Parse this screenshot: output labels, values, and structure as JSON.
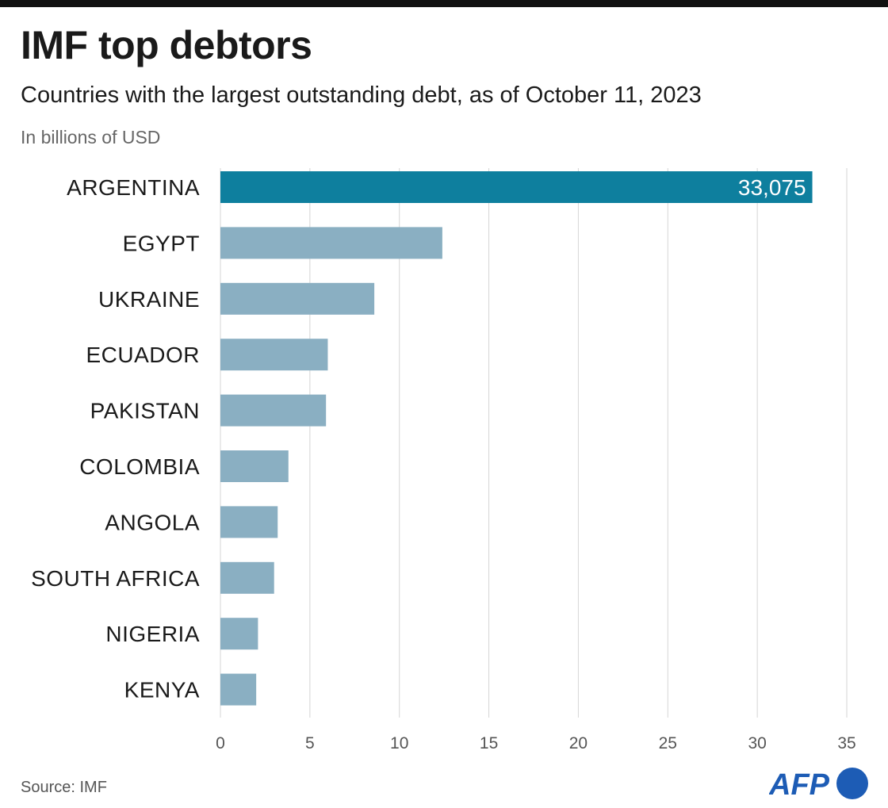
{
  "title": "IMF top debtors",
  "subtitle": "Countries with the largest outstanding debt, as of October 11, 2023",
  "unit_note": "In billions of USD",
  "source": "Source: IMF",
  "logo_text": "AFP",
  "colors": {
    "highlight": "#0e7f9e",
    "bar": "#8aafc2",
    "grid": "#d6d6d6",
    "logo": "#1d5cb5"
  },
  "chart_data": {
    "type": "bar",
    "orientation": "horizontal",
    "categories": [
      "ARGENTINA",
      "EGYPT",
      "UKRAINE",
      "ECUADOR",
      "PAKISTAN",
      "COLOMBIA",
      "ANGOLA",
      "SOUTH AFRICA",
      "NIGERIA",
      "KENYA"
    ],
    "values": [
      33.075,
      12.4,
      8.6,
      6.0,
      5.9,
      3.8,
      3.2,
      3.0,
      2.1,
      2.0
    ],
    "data_labels": [
      "33,075",
      "",
      "",
      "",
      "",
      "",
      "",
      "",
      "",
      ""
    ],
    "highlight_index": 0,
    "xlim": [
      0,
      35
    ],
    "xticks": [
      0,
      5,
      10,
      15,
      20,
      25,
      30,
      35
    ],
    "xtick_labels": [
      "0",
      "5",
      "10",
      "15",
      "20",
      "25",
      "30",
      "35"
    ],
    "grid": "vertical",
    "title": "IMF top debtors",
    "xlabel": "",
    "ylabel": ""
  }
}
